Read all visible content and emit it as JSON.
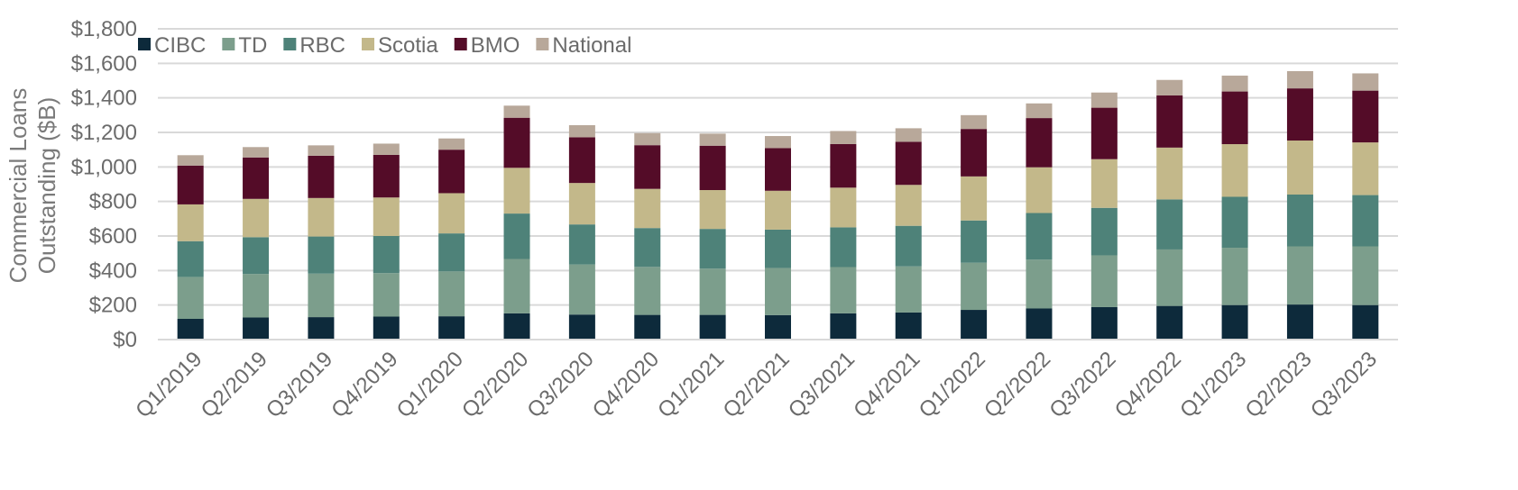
{
  "chart_data": {
    "type": "bar",
    "stacked": true,
    "title": "",
    "xlabel": "",
    "ylabel_lines": [
      "Commercial Loans",
      "Outstanding ($B)"
    ],
    "ylim": [
      0,
      1800
    ],
    "ytick_values": [
      0,
      200,
      400,
      600,
      800,
      1000,
      1200,
      1400,
      1600,
      1800
    ],
    "ytick_labels": [
      "$0",
      "$200",
      "$400",
      "$600",
      "$800",
      "$1,000",
      "$1,200",
      "$1,400",
      "$1,600",
      "$1,800"
    ],
    "grid": true,
    "legend_position": "top-left",
    "categories": [
      "Q1/2019",
      "Q2/2019",
      "Q3/2019",
      "Q4/2019",
      "Q1/2020",
      "Q2/2020",
      "Q3/2020",
      "Q4/2020",
      "Q1/2021",
      "Q2/2021",
      "Q3/2021",
      "Q4/2021",
      "Q1/2022",
      "Q2/2022",
      "Q3/2022",
      "Q4/2022",
      "Q1/2023",
      "Q2/2023",
      "Q3/2023"
    ],
    "series": [
      {
        "name": "CIBC",
        "color": "#0d2a3b",
        "values": [
          120,
          128,
          130,
          133,
          135,
          152,
          145,
          143,
          143,
          142,
          152,
          157,
          172,
          180,
          188,
          195,
          200,
          203,
          200
        ]
      },
      {
        "name": "TD",
        "color": "#7c9e8c",
        "values": [
          243,
          252,
          252,
          252,
          260,
          315,
          290,
          278,
          268,
          273,
          268,
          267,
          273,
          283,
          300,
          327,
          332,
          337,
          340
        ]
      },
      {
        "name": "RBC",
        "color": "#4e8279",
        "values": [
          207,
          213,
          215,
          215,
          220,
          263,
          232,
          225,
          230,
          222,
          230,
          235,
          245,
          270,
          275,
          290,
          295,
          300,
          297
        ]
      },
      {
        "name": "Scotia",
        "color": "#c3b88a",
        "values": [
          213,
          222,
          223,
          223,
          233,
          265,
          240,
          227,
          225,
          225,
          230,
          237,
          255,
          265,
          282,
          300,
          305,
          313,
          305
        ]
      },
      {
        "name": "BMO",
        "color": "#540c28",
        "values": [
          225,
          240,
          245,
          247,
          252,
          290,
          265,
          253,
          257,
          247,
          253,
          250,
          275,
          285,
          298,
          302,
          305,
          302,
          300
        ]
      },
      {
        "name": "National",
        "color": "#b8a89a",
        "values": [
          60,
          60,
          60,
          65,
          65,
          70,
          70,
          70,
          70,
          70,
          75,
          78,
          80,
          85,
          88,
          90,
          92,
          100,
          100
        ]
      }
    ]
  }
}
